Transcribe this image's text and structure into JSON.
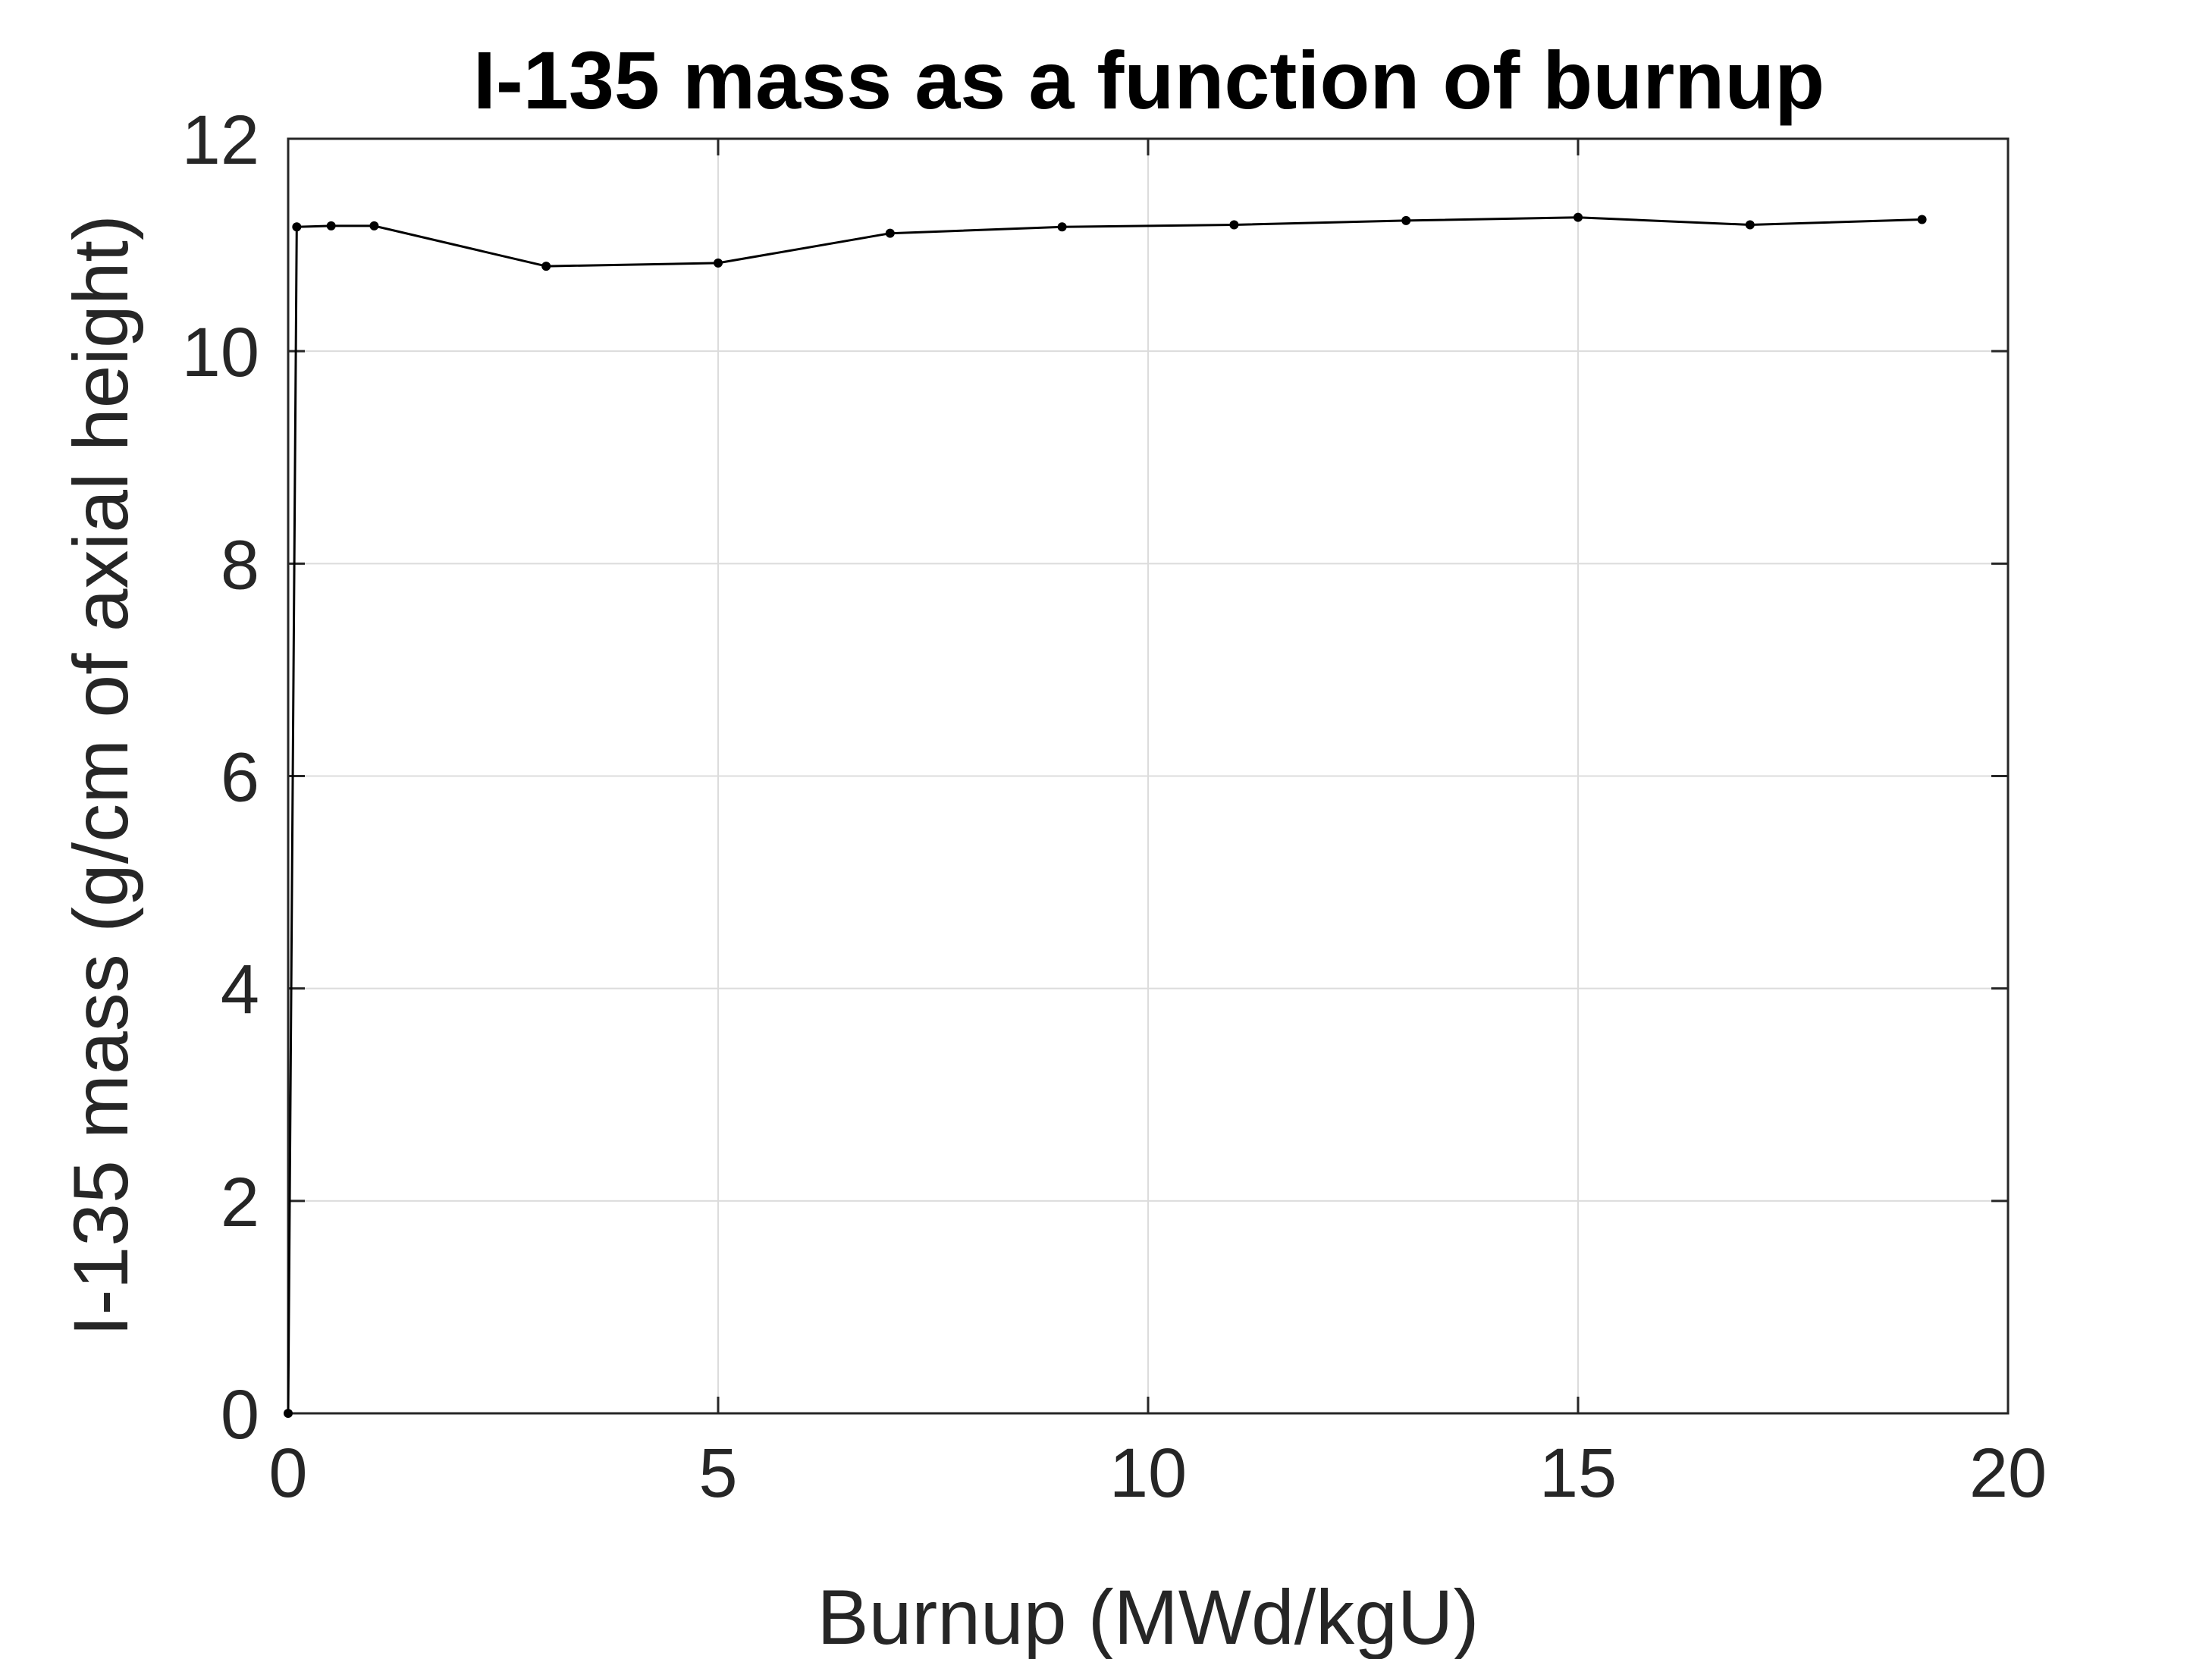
{
  "chart_data": {
    "type": "line",
    "title": "I-135 mass as a function of burnup",
    "xlabel": "Burnup (MWd/kgU)",
    "ylabel": "I-135 mass (g/cm of axial height)",
    "xlim": [
      0,
      20
    ],
    "ylim": [
      0,
      12
    ],
    "xticks": [
      0,
      5,
      10,
      15,
      20
    ],
    "yticks": [
      0,
      2,
      4,
      6,
      8,
      10,
      12
    ],
    "xtick_labels": [
      "0",
      "5",
      "10",
      "15",
      "20"
    ],
    "ytick_labels": [
      "0",
      "2",
      "4",
      "6",
      "8",
      "10",
      "12"
    ],
    "grid": true,
    "legend": "none",
    "series": [
      {
        "color": "#000000",
        "marker": "dot",
        "x": [
          0,
          0.1,
          0.5,
          1,
          3,
          5,
          7,
          9,
          11,
          13,
          15,
          17,
          19
        ],
        "y": [
          0,
          11.17,
          11.18,
          11.18,
          10.8,
          10.83,
          11.11,
          11.17,
          11.19,
          11.23,
          11.26,
          11.19,
          11.24
        ]
      }
    ],
    "colors": {
      "axes": "#262626",
      "grid": "#dcdcdc",
      "line": "#000000"
    }
  }
}
